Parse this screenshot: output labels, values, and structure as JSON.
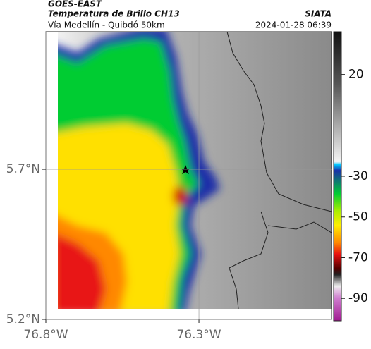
{
  "header": {
    "satellite": "GOES-EAST",
    "product": "Temperatura de Brillo CH13",
    "region": "Vía Medellín - Quibdó 50km",
    "source": "SIATA",
    "datetime": "2024-01-28 06:39"
  },
  "map": {
    "xlim": [
      -76.8,
      -75.867
    ],
    "ylim": [
      5.2,
      6.158
    ],
    "xticks": [
      {
        "value": -76.8,
        "label": "76.8°W"
      },
      {
        "value": -76.3,
        "label": "76.3°W"
      }
    ],
    "yticks": [
      {
        "value": 5.2,
        "label": "5.2°N"
      },
      {
        "value": 5.7,
        "label": "5.7°N"
      }
    ],
    "grid": true
  },
  "colorbar": {
    "lim": [
      41,
      -101
    ],
    "ticks": [
      20,
      -30,
      -50,
      -70,
      -90
    ]
  }
}
